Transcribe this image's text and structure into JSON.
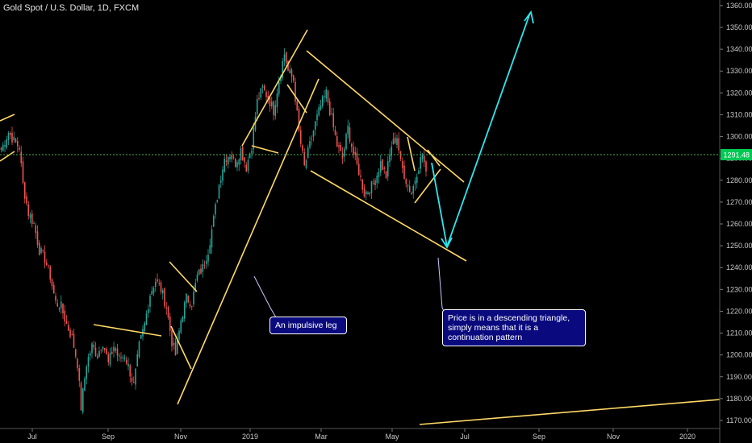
{
  "header": {
    "title": "Gold Spot / U.S. Dollar, 1D, FXCM"
  },
  "colors": {
    "background": "#000000",
    "up": "#26a69a",
    "down": "#ef5350",
    "trendline": "#ffd966",
    "arrow": "#2ee6f0",
    "price_line": "#4caf50",
    "price_tag": "#00c853",
    "note_bg": "#0a0a7e"
  },
  "annotations": {
    "impulsive": "An impulsive leg",
    "triangle": "Price is in a descending triangle, simply means that it is a continuation pattern"
  },
  "chart_data": {
    "type": "candlestick",
    "title": "Gold Spot / U.S. Dollar, 1D, FXCM",
    "ylim": [
      1168,
      1362
    ],
    "y_ticks": [
      1170,
      1180,
      1190,
      1200,
      1210,
      1220,
      1230,
      1240,
      1250,
      1260,
      1270,
      1280,
      1290,
      1300,
      1310,
      1320,
      1330,
      1340,
      1350,
      1360
    ],
    "x_ticks": [
      "Jul",
      "Sep",
      "Nov",
      "2019",
      "Mar",
      "May",
      "Jul",
      "Sep",
      "Nov",
      "2020"
    ],
    "current_price": "1291.48",
    "grid": false,
    "waypoints": [
      [
        0,
        1294
      ],
      [
        4,
        1302
      ],
      [
        7,
        1298
      ],
      [
        10,
        1295
      ],
      [
        12,
        1278
      ],
      [
        15,
        1265
      ],
      [
        18,
        1260
      ],
      [
        21,
        1248
      ],
      [
        24,
        1244
      ],
      [
        27,
        1236
      ],
      [
        30,
        1224
      ],
      [
        33,
        1222
      ],
      [
        36,
        1214
      ],
      [
        39,
        1208
      ],
      [
        42,
        1196
      ],
      [
        44,
        1176
      ],
      [
        47,
        1196
      ],
      [
        50,
        1204
      ],
      [
        53,
        1200
      ],
      [
        56,
        1206
      ],
      [
        59,
        1196
      ],
      [
        62,
        1204
      ],
      [
        65,
        1198
      ],
      [
        68,
        1200
      ],
      [
        71,
        1192
      ],
      [
        73,
        1186
      ],
      [
        76,
        1204
      ],
      [
        79,
        1214
      ],
      [
        82,
        1228
      ],
      [
        85,
        1234
      ],
      [
        88,
        1230
      ],
      [
        91,
        1222
      ],
      [
        94,
        1206
      ],
      [
        96,
        1200
      ],
      [
        99,
        1216
      ],
      [
        102,
        1226
      ],
      [
        105,
        1224
      ],
      [
        108,
        1236
      ],
      [
        111,
        1240
      ],
      [
        114,
        1248
      ],
      [
        117,
        1262
      ],
      [
        120,
        1278
      ],
      [
        123,
        1290
      ],
      [
        126,
        1292
      ],
      [
        129,
        1288
      ],
      [
        132,
        1294
      ],
      [
        135,
        1286
      ],
      [
        138,
        1296
      ],
      [
        141,
        1316
      ],
      [
        144,
        1322
      ],
      [
        147,
        1318
      ],
      [
        150,
        1312
      ],
      [
        153,
        1326
      ],
      [
        156,
        1338
      ],
      [
        158,
        1330
      ],
      [
        161,
        1326
      ],
      [
        164,
        1302
      ],
      [
        167,
        1286
      ],
      [
        170,
        1296
      ],
      [
        173,
        1306
      ],
      [
        176,
        1314
      ],
      [
        179,
        1320
      ],
      [
        182,
        1308
      ],
      [
        185,
        1296
      ],
      [
        188,
        1290
      ],
      [
        191,
        1304
      ],
      [
        194,
        1292
      ],
      [
        197,
        1284
      ],
      [
        200,
        1274
      ],
      [
        203,
        1276
      ],
      [
        206,
        1280
      ],
      [
        209,
        1288
      ],
      [
        212,
        1282
      ],
      [
        215,
        1296
      ],
      [
        218,
        1300
      ],
      [
        220,
        1288
      ],
      [
        223,
        1280
      ],
      [
        226,
        1274
      ],
      [
        229,
        1284
      ],
      [
        232,
        1292
      ],
      [
        234,
        1284
      ]
    ]
  }
}
